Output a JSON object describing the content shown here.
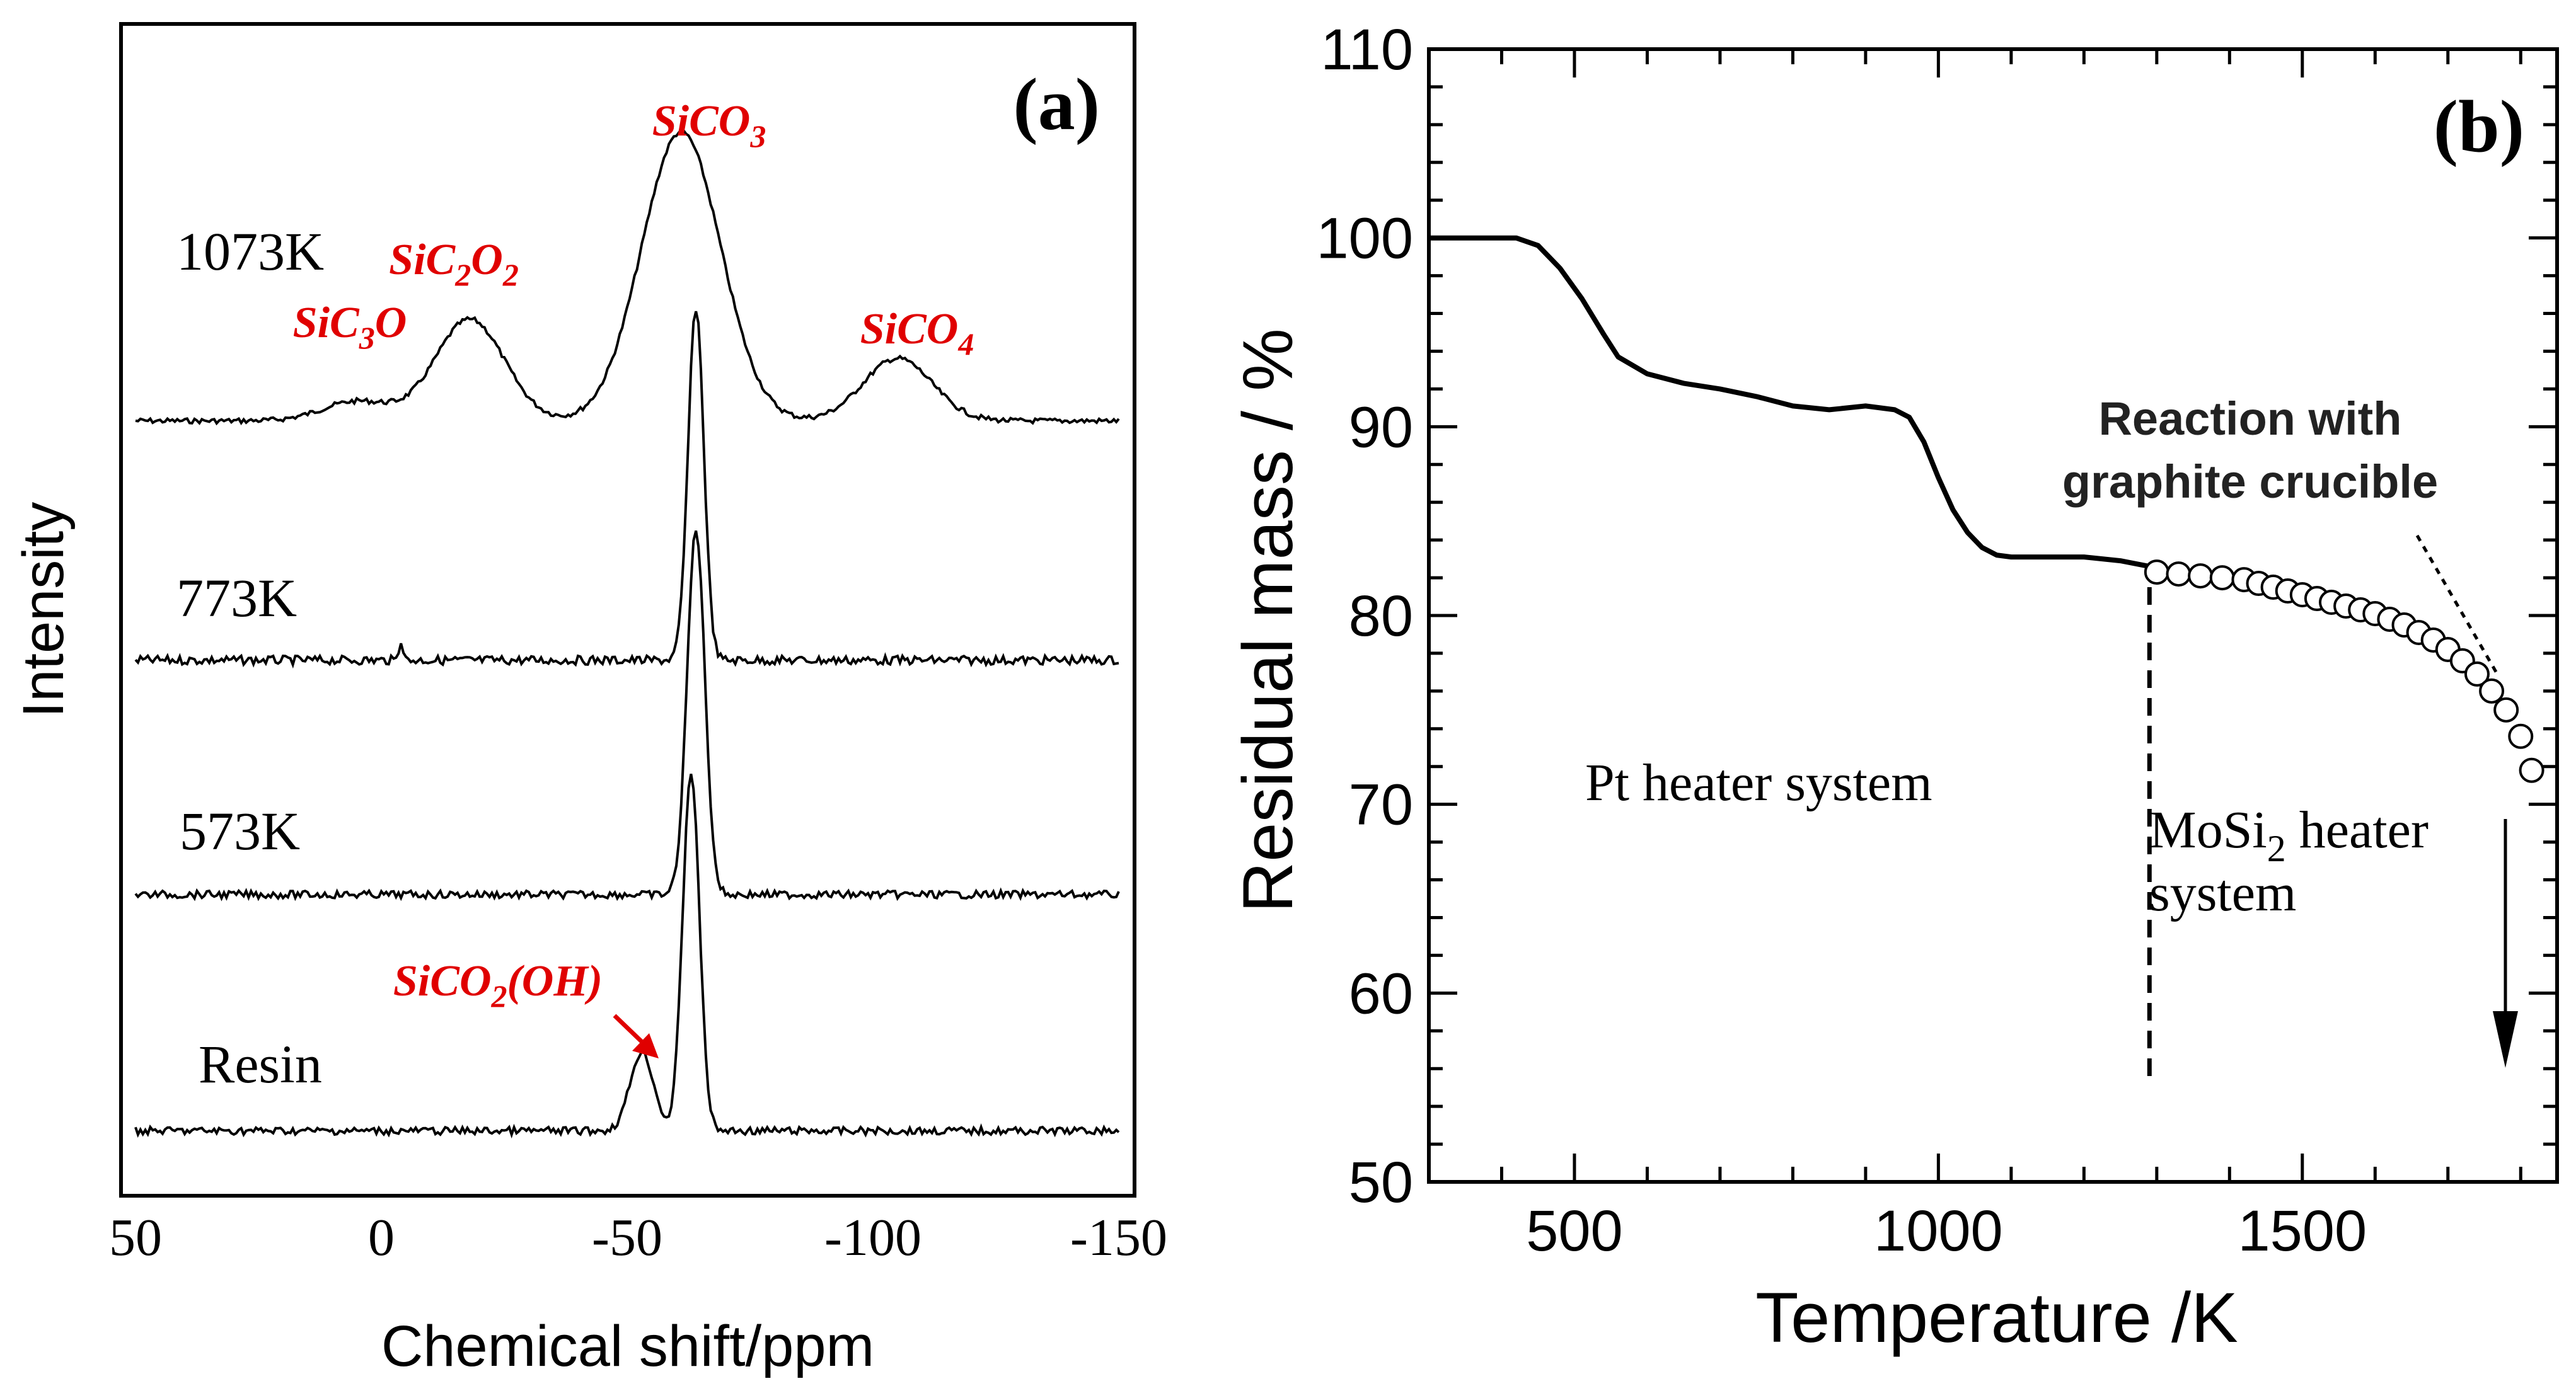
{
  "chart_data": [
    {
      "panel": "(a)",
      "type": "line",
      "xlabel": "Chemical shift/ppm",
      "ylabel": "Intensity",
      "xlim": [
        50,
        -150
      ],
      "xticks": [
        "50",
        "0",
        "-50",
        "-100",
        "-150"
      ],
      "peak_labels": [
        {
          "base": "SiC",
          "sub1": "3",
          "mid": "O",
          "sub2": "",
          "tail": "",
          "x": 10
        },
        {
          "base": "SiC",
          "sub1": "2",
          "mid": "O",
          "sub2": "2",
          "tail": "",
          "x": -17
        },
        {
          "base": "SiCO",
          "sub1": "3",
          "mid": "",
          "sub2": "",
          "tail": "",
          "x": -60
        },
        {
          "base": "SiCO",
          "sub1": "4",
          "mid": "",
          "sub2": "",
          "tail": "",
          "x": -108
        },
        {
          "base": "SiCO",
          "sub1": "2",
          "mid": "(OH)",
          "sub2": "",
          "tail": "",
          "x": -45
        }
      ],
      "series": [
        {
          "name": "1073K",
          "peaks": [
            {
              "x": 5,
              "h": 0.05,
              "w": 7
            },
            {
              "x": -18,
              "h": 0.26,
              "w": 7
            },
            {
              "x": -61,
              "h": 0.74,
              "w": 8
            },
            {
              "x": -105,
              "h": 0.16,
              "w": 7
            }
          ]
        },
        {
          "name": "773K",
          "peaks": [
            {
              "x": -64,
              "h": 1.0,
              "w": 1.6
            },
            {
              "x": -4,
              "h": 0.06,
              "w": 0.4
            }
          ]
        },
        {
          "name": "573K",
          "peaks": [
            {
              "x": -64,
              "h": 1.0,
              "w": 1.8
            }
          ]
        },
        {
          "name": "Resin",
          "peaks": [
            {
              "x": -63,
              "h": 1.0,
              "w": 1.7
            },
            {
              "x": -53,
              "h": 0.22,
              "w": 2.4
            }
          ]
        }
      ]
    },
    {
      "panel": "(b)",
      "type": "line",
      "xlabel": "Temperature /K",
      "ylabel": "Residual mass / %",
      "xlim": [
        300,
        1850
      ],
      "ylim": [
        50,
        110
      ],
      "xticks": [
        500,
        1000,
        1500
      ],
      "yticks": [
        50,
        60,
        70,
        80,
        90,
        100,
        110
      ],
      "series": [
        {
          "name": "Pt heater system",
          "x": [
            300,
            420,
            450,
            480,
            510,
            540,
            560,
            600,
            650,
            700,
            750,
            800,
            850,
            900,
            940,
            960,
            980,
            1000,
            1020,
            1040,
            1060,
            1080,
            1100,
            1150,
            1200,
            1250,
            1290
          ],
          "y": [
            100,
            100,
            99.6,
            98.4,
            96.8,
            94.9,
            93.7,
            92.8,
            92.3,
            92.0,
            91.6,
            91.1,
            90.9,
            91.1,
            90.9,
            90.5,
            89.2,
            87.3,
            85.6,
            84.4,
            83.6,
            83.2,
            83.1,
            83.1,
            83.1,
            82.9,
            82.6
          ]
        },
        {
          "name": "MoSi2 heater system",
          "x": [
            1300,
            1330,
            1360,
            1390,
            1420,
            1440,
            1460,
            1480,
            1500,
            1520,
            1540,
            1560,
            1580,
            1600,
            1620,
            1640,
            1660,
            1680,
            1700,
            1720,
            1740,
            1760,
            1780,
            1800,
            1815
          ],
          "y": [
            82.3,
            82.2,
            82.1,
            82.0,
            81.9,
            81.7,
            81.5,
            81.3,
            81.1,
            80.9,
            80.7,
            80.5,
            80.3,
            80.1,
            79.8,
            79.5,
            79.1,
            78.7,
            78.2,
            77.6,
            76.9,
            76.0,
            75.0,
            73.6,
            71.8
          ]
        }
      ],
      "annotations": {
        "line1": "Reaction with",
        "line2": "graphite crucible",
        "region_pt": "Pt heater system",
        "mosi_pre": "MoSi",
        "mosi_sub": "2",
        "mosi_post": " heater",
        "mosi_line2": "system"
      },
      "divider_x": 1290
    }
  ]
}
